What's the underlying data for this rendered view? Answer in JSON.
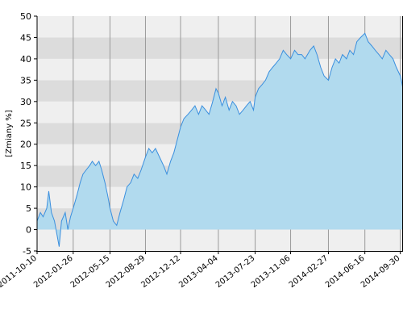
{
  "chart_data": {
    "type": "area",
    "title": "",
    "xlabel": "",
    "ylabel": "[Zmiany %]",
    "ylim": [
      -5,
      50
    ],
    "yticks": [
      -5,
      0,
      5,
      10,
      15,
      20,
      25,
      30,
      35,
      40,
      45,
      50
    ],
    "xlim": [
      "2011-10-10",
      "2014-10-08"
    ],
    "x_tick_labels": [
      "2011-10-10",
      "2012-01-26",
      "2012-05-15",
      "2012-08-29",
      "2012-12-12",
      "2013-04-04",
      "2013-07-23",
      "2013-11-06",
      "2014-02-27",
      "2014-06-16",
      "2014-09-30"
    ],
    "grid": true,
    "legend": "none",
    "colors": {
      "line": "#3a8fde",
      "fill": "#b3dbef",
      "fill_below": "#a9d3e8",
      "band_light": "#efefef",
      "band_dark": "#dcdcdc",
      "grid": "#9a9a9a"
    },
    "series": [
      {
        "x": [
          "2011-10-10",
          "2011-10-20",
          "2011-10-28",
          "2011-11-08",
          "2011-11-14",
          "2011-11-22",
          "2011-12-01",
          "2011-12-08",
          "2011-12-15",
          "2011-12-22",
          "2012-01-02",
          "2012-01-10",
          "2012-01-18",
          "2012-01-26",
          "2012-02-06",
          "2012-02-16",
          "2012-02-24",
          "2012-03-05",
          "2012-03-15",
          "2012-03-23",
          "2012-04-02",
          "2012-04-12",
          "2012-04-20",
          "2012-04-30",
          "2012-05-08",
          "2012-05-15",
          "2012-05-25",
          "2012-06-04",
          "2012-06-14",
          "2012-06-25",
          "2012-07-05",
          "2012-07-16",
          "2012-07-26",
          "2012-08-06",
          "2012-08-16",
          "2012-08-29",
          "2012-09-08",
          "2012-09-18",
          "2012-09-28",
          "2012-10-10",
          "2012-10-22",
          "2012-11-01",
          "2012-11-12",
          "2012-11-22",
          "2012-12-02",
          "2012-12-12",
          "2012-12-22",
          "2013-01-03",
          "2013-01-14",
          "2013-01-24",
          "2013-02-04",
          "2013-02-14",
          "2013-02-25",
          "2013-03-07",
          "2013-03-18",
          "2013-03-28",
          "2013-04-04",
          "2013-04-15",
          "2013-04-25",
          "2013-05-06",
          "2013-05-16",
          "2013-05-27",
          "2013-06-06",
          "2013-06-17",
          "2013-06-27",
          "2013-07-08",
          "2013-07-18",
          "2013-07-23",
          "2013-08-02",
          "2013-08-13",
          "2013-08-23",
          "2013-09-03",
          "2013-09-13",
          "2013-09-24",
          "2013-10-04",
          "2013-10-15",
          "2013-10-25",
          "2013-11-06",
          "2013-11-18",
          "2013-11-28",
          "2013-12-09",
          "2013-12-19",
          "2014-01-03",
          "2014-01-14",
          "2014-01-24",
          "2014-02-04",
          "2014-02-14",
          "2014-02-27",
          "2014-03-10",
          "2014-03-20",
          "2014-03-31",
          "2014-04-10",
          "2014-04-22",
          "2014-05-02",
          "2014-05-13",
          "2014-05-23",
          "2014-06-03",
          "2014-06-16",
          "2014-06-26",
          "2014-07-07",
          "2014-07-17",
          "2014-07-28",
          "2014-08-07",
          "2014-08-18",
          "2014-08-28",
          "2014-09-08",
          "2014-09-18",
          "2014-09-30",
          "2014-10-03",
          "2014-10-08"
        ],
        "values": [
          2,
          4,
          3,
          5,
          9,
          4,
          2,
          -1,
          -4,
          2,
          4,
          0,
          3,
          5,
          8,
          11,
          13,
          14,
          15,
          16,
          15,
          16,
          14,
          11,
          8,
          5,
          2,
          1,
          4,
          7,
          10,
          11,
          13,
          12,
          14,
          17,
          19,
          18,
          19,
          17,
          15,
          13,
          16,
          18,
          21,
          24,
          26,
          27,
          28,
          29,
          27,
          29,
          28,
          27,
          30,
          33,
          32,
          29,
          31,
          28,
          30,
          29,
          27,
          28,
          29,
          30,
          28,
          31,
          33,
          34,
          35,
          37,
          38,
          39,
          40,
          42,
          41,
          40,
          42,
          41,
          41,
          40,
          42,
          43,
          41,
          38,
          36,
          35,
          38,
          40,
          39,
          41,
          40,
          42,
          41,
          44,
          45,
          46,
          44,
          43,
          42,
          41,
          40,
          42,
          41,
          40,
          38,
          36,
          35,
          33
        ]
      }
    ]
  }
}
